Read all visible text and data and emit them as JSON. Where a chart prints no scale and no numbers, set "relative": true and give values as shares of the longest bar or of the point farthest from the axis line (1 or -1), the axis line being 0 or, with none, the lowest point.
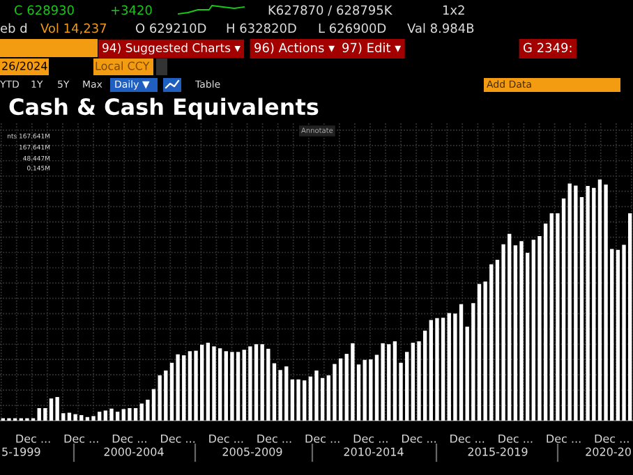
{
  "chart_data": {
    "type": "bar",
    "title": "Cash & Cash Equivalents",
    "relative": true,
    "color": "#ffffff",
    "grid": true,
    "categories": [
      null,
      null,
      null,
      null,
      null,
      "Dec ...",
      null,
      null,
      null,
      null,
      null,
      null,
      null,
      "Dec ...",
      null,
      null,
      null,
      null,
      null,
      null,
      null,
      "Dec ...",
      null,
      null,
      null,
      null,
      null,
      null,
      null,
      "Dec ...",
      null,
      null,
      null,
      null,
      null,
      null,
      null,
      "Dec ...",
      null,
      null,
      null,
      null,
      null,
      null,
      null,
      "Dec ...",
      null,
      null,
      null,
      null,
      null,
      null,
      null,
      "Dec ...",
      null,
      null,
      null,
      null,
      null,
      null,
      null,
      "Dec ...",
      null,
      null,
      null,
      null,
      null,
      null,
      null,
      "Dec ...",
      null,
      null,
      null,
      null,
      null,
      null,
      null,
      "Dec ...",
      null,
      null,
      null,
      null,
      null,
      null,
      null,
      "Dec ...",
      null,
      null,
      null,
      null,
      null,
      null,
      null,
      "Dec ...",
      null,
      null,
      null,
      null,
      null,
      null,
      null,
      "Dec ...",
      null,
      null,
      null
    ],
    "values": [
      0.01,
      0.01,
      0.01,
      0.01,
      0.01,
      0.01,
      0.052,
      0.052,
      0.092,
      0.098,
      0.031,
      0.033,
      0.027,
      0.023,
      0.015,
      0.019,
      0.037,
      0.042,
      0.05,
      0.037,
      0.048,
      0.052,
      0.052,
      0.071,
      0.087,
      0.131,
      0.188,
      0.208,
      0.24,
      0.275,
      0.271,
      0.288,
      0.29,
      0.315,
      0.323,
      0.308,
      0.3,
      0.288,
      0.285,
      0.285,
      0.294,
      0.308,
      0.317,
      0.317,
      0.298,
      0.238,
      0.21,
      0.225,
      0.171,
      0.171,
      0.167,
      0.183,
      0.208,
      0.177,
      0.188,
      0.235,
      0.258,
      0.277,
      0.321,
      0.233,
      0.252,
      0.254,
      0.273,
      0.321,
      0.317,
      0.329,
      0.24,
      0.285,
      0.323,
      0.329,
      0.373,
      0.417,
      0.425,
      0.427,
      0.446,
      0.444,
      0.483,
      0.39,
      0.487,
      0.567,
      0.577,
      0.648,
      0.667,
      0.731,
      0.775,
      0.727,
      0.744,
      0.696,
      0.75,
      0.765,
      0.817,
      0.86,
      0.86,
      0.921,
      0.983,
      0.975,
      0.927,
      0.973,
      0.965,
      1,
      0.979,
      0.712,
      0.708,
      0.729,
      0.86
    ],
    "annotations": [
      "C 628930",
      "+3420",
      "K627870 / 628795K",
      "1x2",
      "eb d",
      "Vol 14,237",
      "O 629210D",
      "H 632820D",
      "L 626900D",
      "Val 8.984B",
      "94) Suggested Charts ▾",
      "96) Actions ▾",
      "97) Edit ▾",
      "G 2349:",
      "26/2024",
      "Local CCY",
      "YTD",
      "1Y",
      "5Y",
      "Max",
      "Daily ▼",
      "Table",
      "Add Data",
      "Annotate",
      "nts 167.641M",
      "167.641M",
      "48.447M",
      "0.145M",
      "5-1999",
      "2000-2004",
      "2005-2009",
      "2010-2014",
      "2015-2019",
      "2020-20"
    ]
  }
}
